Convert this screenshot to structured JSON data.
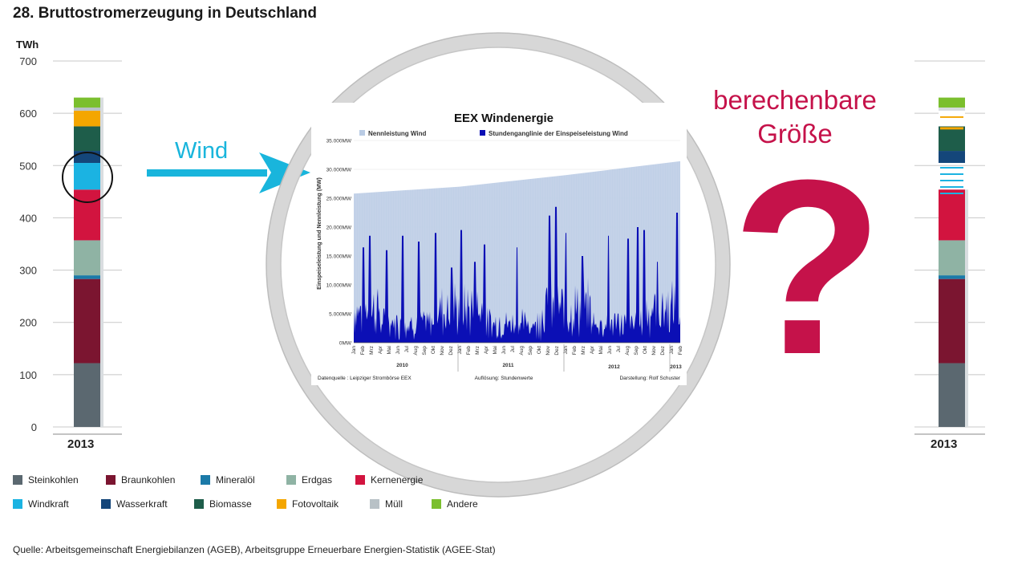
{
  "title": "28. Bruttostromerzeugung in Deutschland",
  "unit": "TWh",
  "y_ticks": [
    "700",
    "600",
    "500",
    "400",
    "300",
    "200",
    "100",
    "0"
  ],
  "year_left": "2013",
  "year_right": "2013",
  "wind_arrow_label": "Wind",
  "question": {
    "line1": "berechenbare",
    "line2": "Größe",
    "mark": "?"
  },
  "legend": [
    {
      "label": "Steinkohlen",
      "color": "#5b6870"
    },
    {
      "label": "Braunkohlen",
      "color": "#7b1530"
    },
    {
      "label": "Mineralöl",
      "color": "#1b7aa8"
    },
    {
      "label": "Erdgas",
      "color": "#8fb3a4"
    },
    {
      "label": "Kernenergie",
      "color": "#d2143f"
    },
    {
      "label": "Windkraft",
      "color": "#1bb3e2"
    },
    {
      "label": "Wasserkraft",
      "color": "#14467a"
    },
    {
      "label": "Biomasse",
      "color": "#1e5d4a"
    },
    {
      "label": "Fotovoltaik",
      "color": "#f4a600"
    },
    {
      "label": "Müll",
      "color": "#b8c1c6"
    },
    {
      "label": "Andere",
      "color": "#7bbf2e"
    }
  ],
  "source": "Quelle: Arbeitsgemeinschaft Energiebilanzen (AGEB), Arbeitsgruppe Erneuerbare Energien-Statistik (AGEE-Stat)",
  "chart_data": [
    {
      "type": "bar",
      "stacked": true,
      "title": "28. Bruttostromerzeugung in Deutschland",
      "ylabel": "TWh",
      "ylim": [
        0,
        700
      ],
      "categories": [
        "2013"
      ],
      "series": [
        {
          "name": "Steinkohlen",
          "values": [
            122
          ]
        },
        {
          "name": "Braunkohlen",
          "values": [
            161
          ]
        },
        {
          "name": "Mineralöl",
          "values": [
            7
          ]
        },
        {
          "name": "Erdgas",
          "values": [
            67
          ]
        },
        {
          "name": "Kernenergie",
          "values": [
            97
          ]
        },
        {
          "name": "Windkraft",
          "values": [
            51
          ]
        },
        {
          "name": "Wasserkraft",
          "values": [
            23
          ]
        },
        {
          "name": "Biomasse",
          "values": [
            47
          ]
        },
        {
          "name": "Fotovoltaik",
          "values": [
            30
          ]
        },
        {
          "name": "Müll",
          "values": [
            6
          ]
        },
        {
          "name": "Andere",
          "values": [
            19
          ]
        }
      ]
    },
    {
      "type": "area",
      "title": "EEX Windenergie",
      "ylabel": "Einspeiseleistung und Nennleistung (MW)",
      "ylim": [
        0,
        35000
      ],
      "y_ticks": [
        "35.000MW",
        "30.000MW",
        "25.000MW",
        "20.000MW",
        "15.000MW",
        "10.000MW",
        "5.000MW",
        "0MW"
      ],
      "x_ticks": [
        "Jan",
        "Feb",
        "Mrz",
        "Apr",
        "Mai",
        "Jun",
        "Jul",
        "Aug",
        "Sep",
        "Okt",
        "Nov",
        "Dez",
        "Jan",
        "Feb",
        "Mrz",
        "Apr",
        "Mai",
        "Jun",
        "Jul",
        "Aug",
        "Sep",
        "Okt",
        "Nov",
        "Dez",
        "Jan",
        "Feb",
        "Mrz",
        "Apr",
        "Mai",
        "Jun",
        "Jul",
        "Aug",
        "Sep",
        "Okt",
        "Nov",
        "Dez",
        "Jan",
        "Feb"
      ],
      "year_labels": [
        "2010",
        "2011",
        "2012",
        "2013"
      ],
      "legend": [
        "Nennleistung Wind",
        "Stundenganglinie der Einspeiseleistung Wind"
      ],
      "series": [
        {
          "name": "Nennleistung Wind",
          "color": "#b9cbe4",
          "x": [
            "2010-01",
            "2011-01",
            "2012-01",
            "2013-02"
          ],
          "values": [
            25800,
            27000,
            29000,
            31400
          ]
        },
        {
          "name": "Stundenganglinie der Einspeiseleistung Wind",
          "color": "#0b0fb5",
          "note": "Stündliche Werte, Spitzen bis ca. 23.500MW"
        }
      ],
      "footer": [
        "Datenquelle : Leipziger Strombörse EEX",
        "Auflösung: Stundenwerte",
        "Darstellung: Rolf Schuster"
      ]
    }
  ],
  "right_bar_partial": {
    "year": "2013",
    "series": [
      {
        "name": "Steinkohlen",
        "values": [
          122
        ]
      },
      {
        "name": "Braunkohlen",
        "values": [
          161
        ]
      },
      {
        "name": "Mineralöl",
        "values": [
          7
        ]
      },
      {
        "name": "Erdgas",
        "values": [
          67
        ]
      },
      {
        "name": "Kernenergie",
        "values": [
          97
        ]
      }
    ]
  }
}
